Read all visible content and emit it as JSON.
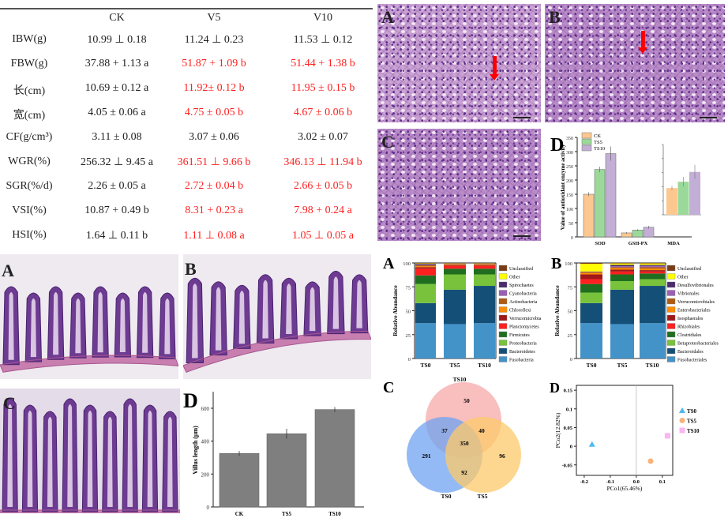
{
  "table": {
    "headers": [
      "",
      "CK",
      "V5",
      "V10"
    ],
    "highlight_color": "#ff1f1f",
    "rows": [
      {
        "label": "IBW(g)",
        "cells": [
          {
            "text": "10.99 ⊥ 0.18",
            "red": false
          },
          {
            "text": "11.24 ⊥ 0.23",
            "red": false
          },
          {
            "text": "11.53 ⊥ 0.12",
            "red": false
          }
        ]
      },
      {
        "label": "FBW(g)",
        "cells": [
          {
            "text": "37.88 + 1.13 a",
            "red": false
          },
          {
            "text": "51.87 + 1.09 b",
            "red": true
          },
          {
            "text": "51.44 + 1.38 b",
            "red": true
          }
        ]
      },
      {
        "label": "长(cm)",
        "cells": [
          {
            "text": "10.69 ± 0.12 a",
            "red": false
          },
          {
            "text": "11.92± 0.12 b",
            "red": true
          },
          {
            "text": "11.95 ± 0.15 b",
            "red": true
          }
        ]
      },
      {
        "label": "宽(cm)",
        "cells": [
          {
            "text": "4.05 ± 0.06 a",
            "red": false
          },
          {
            "text": "4.75 ± 0.05 b",
            "red": true
          },
          {
            "text": "4.67 ± 0.06 b",
            "red": true
          }
        ]
      },
      {
        "label": "CF(g/cm³)",
        "cells": [
          {
            "text": "3.11 ± 0.08",
            "red": false
          },
          {
            "text": "3.07 ± 0.06",
            "red": false
          },
          {
            "text": "3.02 ± 0.07",
            "red": false
          }
        ]
      },
      {
        "label": "WGR(%)",
        "cells": [
          {
            "text": "256.32 ⊥ 9.45 a",
            "red": false
          },
          {
            "text": "361.51 ⊥ 9.66 b",
            "red": true
          },
          {
            "text": "346.13 ⊥ 11.94 b",
            "red": true
          }
        ]
      },
      {
        "label": "SGR(%/d)",
        "cells": [
          {
            "text": "2.26 ± 0.05 a",
            "red": false
          },
          {
            "text": "2.72 ± 0.04 b",
            "red": true
          },
          {
            "text": "2.66 ± 0.05 b",
            "red": true
          }
        ]
      },
      {
        "label": "VSI(%)",
        "cells": [
          {
            "text": "10.87 + 0.49 b",
            "red": false
          },
          {
            "text": "8.31 + 0.23 a",
            "red": true
          },
          {
            "text": "7.98 + 0.24 a",
            "red": true
          }
        ]
      },
      {
        "label": "HSI(%)",
        "cells": [
          {
            "text": "1.64 ⊥ 0.11 b",
            "red": false
          },
          {
            "text": "1.11 ⊥ 0.08 a",
            "red": true
          },
          {
            "text": "1.05 ⊥ 0.05 a",
            "red": true
          }
        ]
      }
    ]
  },
  "liver_panels": {
    "a": "A",
    "b": "B",
    "c": "C"
  },
  "intestine_panels": {
    "a": "A",
    "b": "B",
    "c": "C"
  },
  "chart_data": [
    {
      "id": "enzyme",
      "panel": "D",
      "type": "bar",
      "ylabel": "Value of antioxidant enzyme activity",
      "categories": [
        "SOD",
        "GSH-PX",
        "MDA"
      ],
      "ylim": [
        0,
        350
      ],
      "yticks": [
        0,
        50,
        100,
        150,
        200,
        250,
        300,
        350
      ],
      "legend": "top-left",
      "series": [
        {
          "name": "CK",
          "color": "#fcc88f",
          "values": [
            150,
            14,
            0.38
          ],
          "errors": [
            7,
            3,
            0.03
          ]
        },
        {
          "name": "TS5",
          "color": "#9bd99b",
          "values": [
            237,
            24,
            0.47
          ],
          "errors": [
            10,
            3,
            0.07
          ]
        },
        {
          "name": "TS10",
          "color": "#c3aed6",
          "values": [
            293,
            34,
            0.61
          ],
          "errors": [
            25,
            5,
            0.1
          ]
        }
      ],
      "inset": {
        "category": "MDA",
        "ylim": [
          0,
          1
        ]
      }
    },
    {
      "id": "villus",
      "panel": "D",
      "type": "bar",
      "ylabel": "Villus length (μm)",
      "categories": [
        "CK",
        "TS5",
        "TS10"
      ],
      "values": [
        325,
        445,
        592
      ],
      "errors": [
        15,
        30,
        15
      ],
      "ylim": [
        0,
        700
      ],
      "yticks": [
        0,
        200,
        400,
        600
      ],
      "color": "#7f7f7f"
    },
    {
      "id": "phylum",
      "panel": "A",
      "type": "bar",
      "stacked": true,
      "ylabel": "Relative Abundance",
      "categories": [
        "TS0",
        "TS5",
        "TS10"
      ],
      "ylim": [
        0,
        100
      ],
      "yticks": [
        0,
        25,
        50,
        75,
        100
      ],
      "legend": "right",
      "series": [
        {
          "name": "Fusobacteria",
          "color": "#4393c8",
          "values": [
            37,
            36,
            37
          ]
        },
        {
          "name": "Bacteroidetes",
          "color": "#144f78",
          "values": [
            21,
            36,
            39
          ]
        },
        {
          "name": "Proteobacteria",
          "color": "#78c23c",
          "values": [
            20,
            16,
            12
          ]
        },
        {
          "name": "Firmicutes",
          "color": "#1f6e1f",
          "values": [
            9,
            6,
            6
          ]
        },
        {
          "name": "Planctomycetes",
          "color": "#ff2020",
          "values": [
            7,
            3,
            3
          ]
        },
        {
          "name": "Verrucomicrobia",
          "color": "#a01818",
          "values": [
            1.5,
            0.8,
            0.8
          ]
        },
        {
          "name": "Chloroflexi",
          "color": "#ff8c00",
          "values": [
            1,
            0.6,
            0.6
          ]
        },
        {
          "name": "Actinobacteria",
          "color": "#b05a10",
          "values": [
            1,
            0.6,
            0.6
          ]
        },
        {
          "name": "Cyanobacteria",
          "color": "#9b5fb5",
          "values": [
            0.5,
            0.2,
            0.2
          ]
        },
        {
          "name": "Spirochaetes",
          "color": "#4b2a6e",
          "values": [
            1,
            0.2,
            0.2
          ]
        },
        {
          "name": "Other",
          "color": "#ffff00",
          "values": [
            0.5,
            0.3,
            0.3
          ]
        },
        {
          "name": "Unclassified",
          "color": "#7a3b14",
          "values": [
            0.5,
            0.3,
            0.3
          ]
        }
      ]
    },
    {
      "id": "order",
      "panel": "B",
      "type": "bar",
      "stacked": true,
      "ylabel": "Relative Abundance",
      "categories": [
        "TS0",
        "TS5",
        "TS10"
      ],
      "ylim": [
        0,
        100
      ],
      "yticks": [
        0,
        25,
        50,
        75,
        100
      ],
      "legend": "right",
      "series": [
        {
          "name": "Fusobacteriales",
          "color": "#4393c8",
          "values": [
            37,
            36,
            37
          ]
        },
        {
          "name": "Bacteroidales",
          "color": "#144f78",
          "values": [
            21,
            36,
            39
          ]
        },
        {
          "name": "Betaproteobacteriales",
          "color": "#78c23c",
          "values": [
            11,
            9,
            7
          ]
        },
        {
          "name": "Clostridiales",
          "color": "#1f6e1f",
          "values": [
            9,
            7,
            6
          ]
        },
        {
          "name": "Rhizobiales",
          "color": "#ff2020",
          "values": [
            5,
            3,
            2
          ]
        },
        {
          "name": "Isosphaerales",
          "color": "#a01818",
          "values": [
            5,
            2,
            1.5
          ]
        },
        {
          "name": "Enterobacteriales",
          "color": "#ff8c00",
          "values": [
            1.5,
            1.5,
            1.5
          ]
        },
        {
          "name": "Verrucomicrobiales",
          "color": "#b05a10",
          "values": [
            1,
            1,
            1.5
          ]
        },
        {
          "name": "Vibrionales",
          "color": "#9b5fb5",
          "values": [
            0.3,
            1,
            1.5
          ]
        },
        {
          "name": "Desulfovibrionales",
          "color": "#4b2a6e",
          "values": [
            0.3,
            1.5,
            1
          ]
        },
        {
          "name": "Other",
          "color": "#ffff00",
          "values": [
            8,
            1.5,
            1.5
          ]
        },
        {
          "name": "Unclassified",
          "color": "#7a3b14",
          "values": [
            0.9,
            0.5,
            0.5
          ]
        }
      ]
    },
    {
      "id": "venn",
      "panel": "C",
      "type": "venn",
      "sets": [
        {
          "name": "TS10",
          "color": "#f7a8a8"
        },
        {
          "name": "TS0",
          "color": "#6fa3f0"
        },
        {
          "name": "TS5",
          "color": "#fcc96a"
        }
      ],
      "regions": {
        "TS10_only": 50,
        "TS0_only": 291,
        "TS5_only": 96,
        "TS0_TS10": 37,
        "TS5_TS10": 40,
        "TS0_TS5": 92,
        "all": 350
      }
    },
    {
      "id": "pcoa",
      "panel": "D",
      "type": "scatter",
      "xlabel": "PCo1(65.46%)",
      "ylabel": "PCo2(12.82%)",
      "xlim": [
        -0.23,
        0.14
      ],
      "ylim": [
        -0.078,
        0.163
      ],
      "xticks": [
        -0.2,
        -0.1,
        0.0,
        0.1
      ],
      "xtick_labels": [
        "-0.2",
        "-0.1",
        "0.0",
        "0.1"
      ],
      "yticks": [
        -0.05,
        0,
        0.05,
        0.1,
        0.15
      ],
      "ytick_labels": [
        "-0.05",
        "0",
        "0.05",
        "0.1",
        "0.15"
      ],
      "legend": "right",
      "points": [
        {
          "name": "TS0",
          "x": -0.17,
          "y": 0.005,
          "color": "#4fb8f0",
          "marker": "triangle"
        },
        {
          "name": "TS5",
          "x": 0.055,
          "y": -0.04,
          "color": "#f8b27a",
          "marker": "circle"
        },
        {
          "name": "TS10",
          "x": 0.12,
          "y": 0.028,
          "color": "#f9b6f0",
          "marker": "square"
        }
      ]
    }
  ]
}
